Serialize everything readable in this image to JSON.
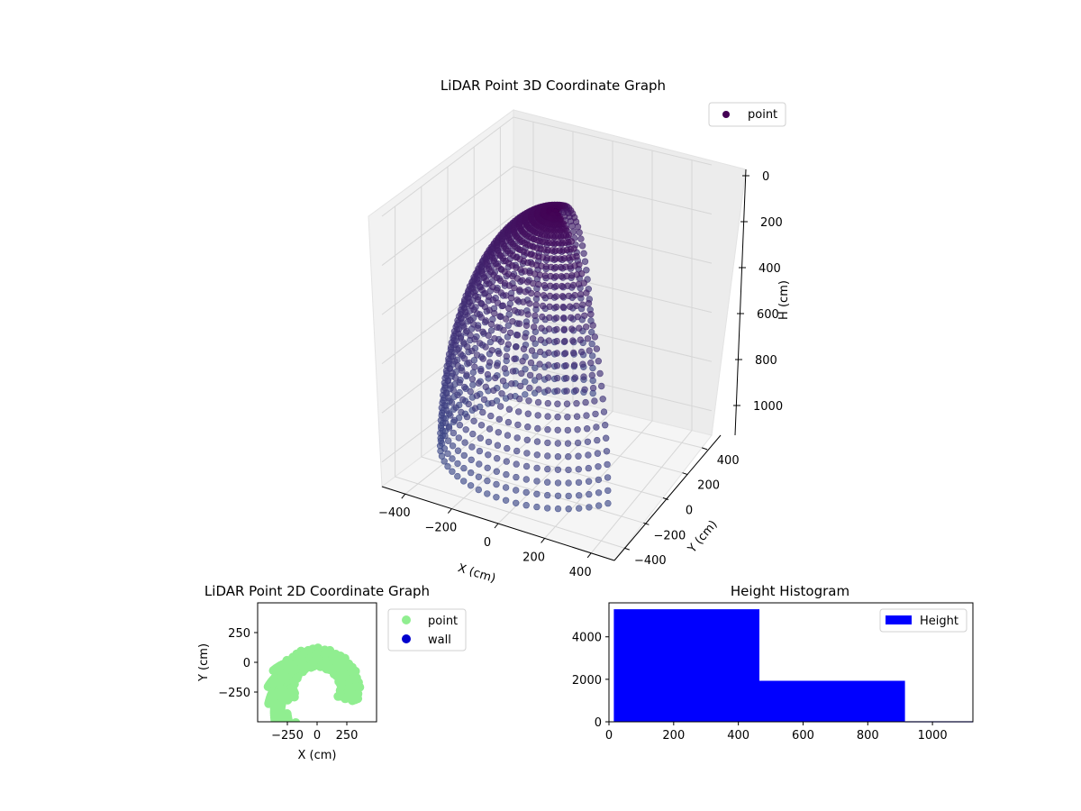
{
  "chart_data": [
    {
      "type": "scatter3d",
      "title": "LiDAR Point 3D Coordinate Graph",
      "xlabel": "X (cm)",
      "ylabel": "Y (cm)",
      "zlabel": "H (cm)",
      "x_ticks": [
        "−400",
        "−200",
        "0",
        "200",
        "400"
      ],
      "y_ticks": [
        "−400",
        "−200",
        "0",
        "200",
        "400"
      ],
      "z_ticks": [
        "0",
        "200",
        "400",
        "600",
        "800",
        "1000"
      ],
      "xlim": [
        -500,
        500
      ],
      "ylim": [
        -500,
        500
      ],
      "zlim": [
        0,
        1100
      ],
      "z_inverted": true,
      "grid": true,
      "legend": {
        "position": "top-right",
        "entries": [
          "point"
        ]
      },
      "colors": {
        "point": "#440154",
        "bottom": "#3e4a89"
      },
      "series": [
        {
          "name": "point",
          "shape": "half-ellipsoid",
          "semi_axis_x": 460,
          "semi_axis_y": 460,
          "depth_h": 1100,
          "scan_lines": 44,
          "points_per_line": 30
        }
      ]
    },
    {
      "type": "scatter",
      "title": "LiDAR Point 2D Coordinate Graph",
      "xlabel": "X (cm)",
      "ylabel": "Y (cm)",
      "x_ticks": [
        "−250",
        "0",
        "250"
      ],
      "y_ticks": [
        "250",
        "0",
        "−250"
      ],
      "xlim": [
        -500,
        500
      ],
      "ylim": [
        -500,
        500
      ],
      "legend": {
        "position": "right-outside",
        "entries": [
          "point",
          "wall"
        ]
      },
      "colors": {
        "point": "#90ee90",
        "wall": "#0000cd"
      },
      "series": [
        {
          "name": "point",
          "shape": "ring",
          "center": [
            0,
            -260
          ],
          "inner_radius": 190,
          "outer_radius": 360
        },
        {
          "name": "wall",
          "points": []
        }
      ]
    },
    {
      "type": "bar",
      "title": "Height Histogram",
      "xlabel": "",
      "ylabel": "",
      "x_ticks": [
        "0",
        "200",
        "400",
        "600",
        "800",
        "1000"
      ],
      "y_ticks": [
        "0",
        "2000",
        "4000"
      ],
      "xlim": [
        0,
        1125
      ],
      "ylim": [
        0,
        5600
      ],
      "legend": {
        "position": "top-right",
        "entries": [
          "Height"
        ]
      },
      "colors": {
        "bar": "#0000ff"
      },
      "bins": [
        {
          "from": 15,
          "to": 465,
          "count": 5300
        },
        {
          "from": 465,
          "to": 915,
          "count": 1930
        },
        {
          "from": 915,
          "to": 1125,
          "count": 25
        }
      ]
    }
  ]
}
